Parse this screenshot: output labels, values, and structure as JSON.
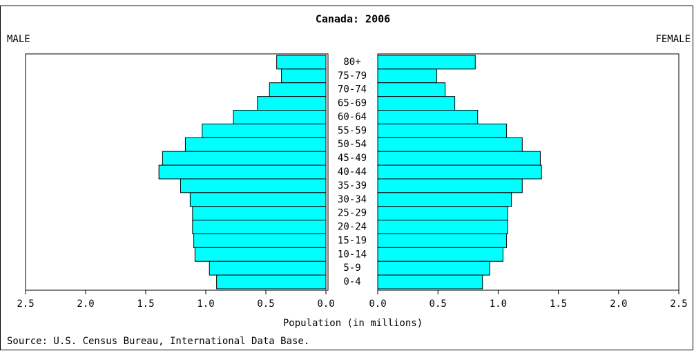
{
  "chart_data": {
    "type": "pyramid",
    "title": "Canada: 2006",
    "categories": [
      "80+",
      "75-79",
      "70-74",
      "65-69",
      "60-64",
      "55-59",
      "50-54",
      "45-49",
      "40-44",
      "35-39",
      "30-34",
      "25-29",
      "20-24",
      "15-19",
      "10-14",
      "5-9",
      "0-4"
    ],
    "series": [
      {
        "name": "MALE",
        "color": "#00ffff",
        "values": [
          0.41,
          0.37,
          0.47,
          0.57,
          0.77,
          1.03,
          1.17,
          1.36,
          1.39,
          1.21,
          1.13,
          1.11,
          1.11,
          1.1,
          1.09,
          0.97,
          0.91
        ]
      },
      {
        "name": "FEMALE",
        "color": "#00ffff",
        "values": [
          0.81,
          0.49,
          0.56,
          0.64,
          0.83,
          1.07,
          1.2,
          1.35,
          1.36,
          1.2,
          1.11,
          1.08,
          1.08,
          1.07,
          1.04,
          0.93,
          0.87
        ]
      }
    ],
    "xlim": [
      0,
      2.5
    ],
    "xticks": [
      {
        "value": 0,
        "label": "0.0"
      },
      {
        "value": 0.5,
        "label": "0.5"
      },
      {
        "value": 1,
        "label": "1.0"
      },
      {
        "value": 1.5,
        "label": "1.5"
      },
      {
        "value": 2,
        "label": "2.0"
      },
      {
        "value": 2.5,
        "label": "2.5"
      }
    ],
    "xlabel": "Population (in millions)",
    "source": "Source: U.S. Census Bureau, International Data Base."
  }
}
